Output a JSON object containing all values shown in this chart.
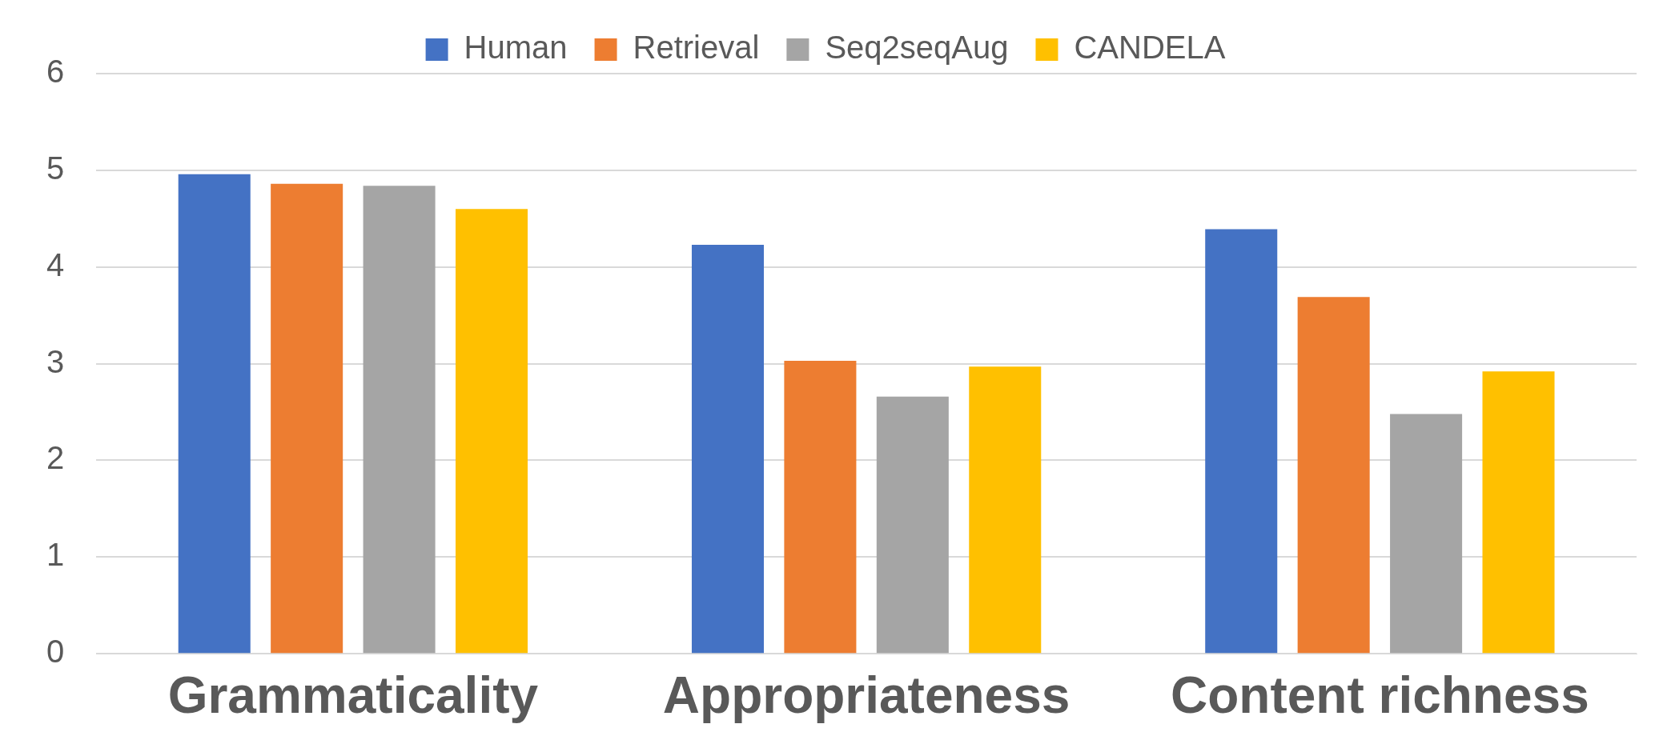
{
  "chart_data": {
    "type": "bar",
    "categories": [
      "Grammaticality",
      "Appropriateness",
      "Content richness"
    ],
    "series": [
      {
        "name": "Human",
        "color": "#4472c4",
        "values": [
          4.96,
          4.23,
          4.39
        ]
      },
      {
        "name": "Retrieval",
        "color": "#ed7d31",
        "values": [
          4.86,
          3.03,
          3.69
        ]
      },
      {
        "name": "Seq2seqAug",
        "color": "#a5a5a5",
        "values": [
          4.84,
          2.66,
          2.48
        ]
      },
      {
        "name": "CANDELA",
        "color": "#ffc000",
        "values": [
          4.6,
          2.97,
          2.92
        ]
      }
    ],
    "ylim": [
      0,
      6
    ],
    "yticks": [
      0,
      1,
      2,
      3,
      4,
      5,
      6
    ],
    "grid": "y",
    "legend": "top"
  }
}
